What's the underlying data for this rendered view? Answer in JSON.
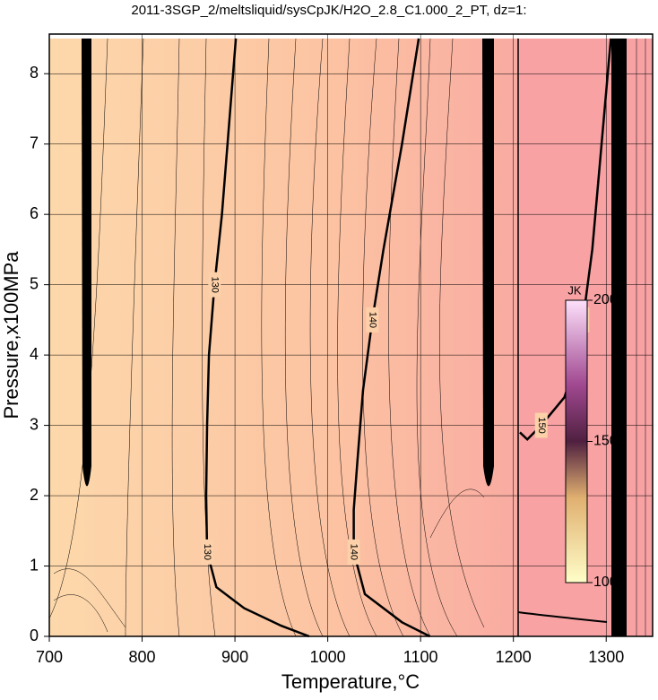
{
  "chart_data": {
    "type": "contour",
    "title": "2011-3SGP_2/meltsliquid/sysCpJK/H2O_2.8_C1.000_2_PT, dz=1:",
    "xlabel": "Temperature,°C",
    "ylabel": "Pressure,x100MPa",
    "xlim": [
      700,
      1350
    ],
    "xticks": [
      700,
      800,
      900,
      1000,
      1100,
      1200,
      1300
    ],
    "ylim": [
      0,
      8.5
    ],
    "yticks": [
      0,
      1,
      2,
      3,
      4,
      5,
      6,
      7,
      8
    ],
    "grid": true,
    "contours": [
      {
        "level": 130,
        "x": [
          901,
          895,
          886,
          878,
          872,
          870,
          869,
          870,
          880,
          910,
          950,
          980
        ],
        "y": [
          8.5,
          7.5,
          6,
          5,
          4,
          3,
          2,
          1.2,
          0.7,
          0.4,
          0.15,
          0
        ]
      },
      {
        "level": 140,
        "x": [
          1098,
          1080,
          1060,
          1048,
          1038,
          1032,
          1028,
          1028,
          1040,
          1080,
          1110
        ],
        "y": [
          8.5,
          7,
          5.5,
          4.5,
          3.5,
          2.5,
          1.8,
          1.2,
          0.6,
          0.2,
          0
        ]
      },
      {
        "level": 150,
        "x": [
          1207,
          1215,
          1230,
          1255,
          1265,
          1275,
          1285,
          1295,
          1305
        ],
        "y": [
          2.9,
          2.8,
          3.0,
          3.4,
          3.8,
          4.5,
          5.5,
          7,
          8.5
        ]
      }
    ],
    "colorbar": {
      "label": "JK",
      "clim": [
        100,
        200
      ],
      "ticks": [
        100,
        150,
        200
      ]
    }
  }
}
